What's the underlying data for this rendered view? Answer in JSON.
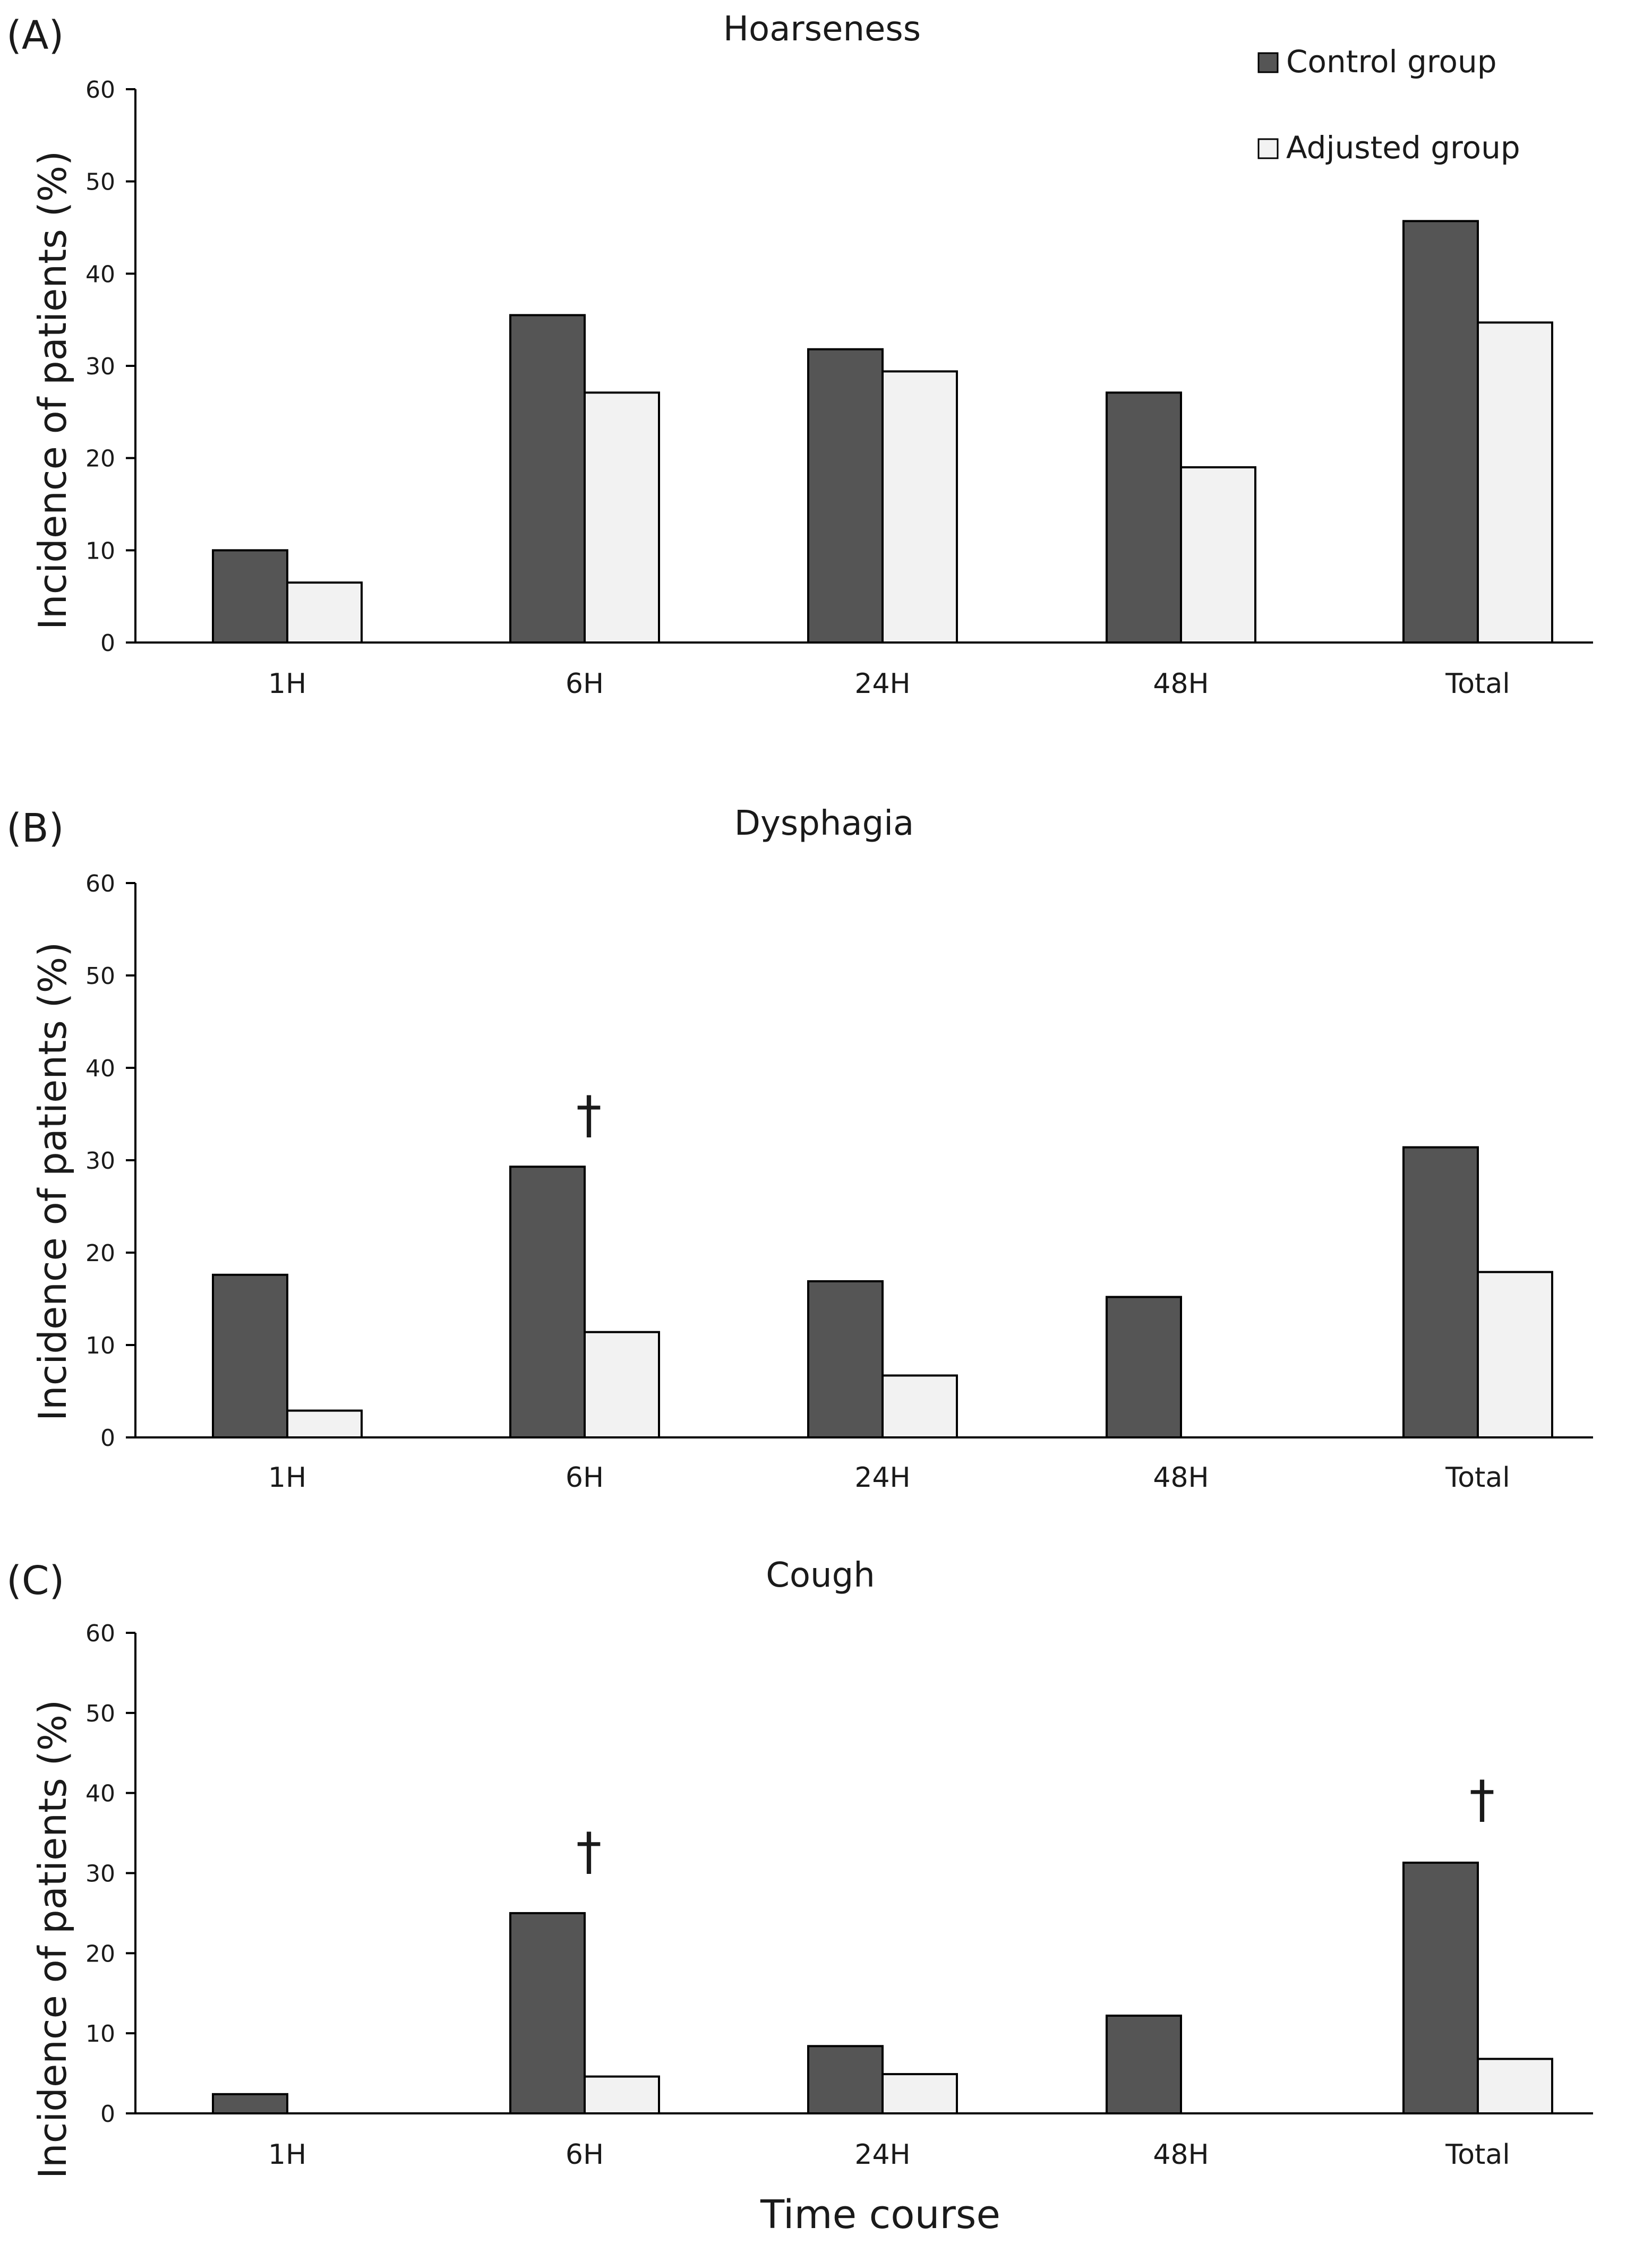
{
  "figure": {
    "xlabel": "Time course",
    "colors": {
      "control": "#555555",
      "adjusted": "#f2f2f2",
      "outline": "#000000"
    }
  },
  "chart_data": [
    {
      "type": "bar",
      "panel_label": "(A)",
      "title": "Hoarseness",
      "ylabel": "Incidence of patients (%)",
      "xlabel": "",
      "ylim": [
        0,
        60
      ],
      "yticks": [
        0,
        10,
        20,
        30,
        40,
        50,
        60
      ],
      "categories": [
        "1H",
        "6H",
        "24H",
        "48H",
        "Total"
      ],
      "series": [
        {
          "name": "Control group",
          "values": [
            10,
            35.5,
            31.8,
            27.1,
            45.7
          ]
        },
        {
          "name": "Adjusted group",
          "values": [
            6.5,
            27.1,
            29.4,
            19,
            34.7
          ]
        }
      ],
      "legend": {
        "position": "top-right",
        "entries": [
          "Control group",
          "Adjusted group"
        ]
      },
      "annotations": []
    },
    {
      "type": "bar",
      "panel_label": "(B)",
      "title": "Dysphagia",
      "ylabel": "Incidence of patients (%)",
      "xlabel": "",
      "ylim": [
        0,
        60
      ],
      "yticks": [
        0,
        10,
        20,
        30,
        40,
        50,
        60
      ],
      "categories": [
        "1H",
        "6H",
        "24H",
        "48H",
        "Total"
      ],
      "series": [
        {
          "name": "Control group",
          "values": [
            17.6,
            29.3,
            16.9,
            15.2,
            31.4
          ]
        },
        {
          "name": "Adjusted group",
          "values": [
            2.9,
            11.4,
            6.7,
            0,
            17.9
          ]
        }
      ],
      "annotations": [
        {
          "text": "†",
          "category": "6H",
          "value": 33
        }
      ]
    },
    {
      "type": "bar",
      "panel_label": "(C)",
      "title": "Cough",
      "ylabel": "Incidence of patients (%)",
      "xlabel": "",
      "ylim": [
        0,
        60
      ],
      "yticks": [
        0,
        10,
        20,
        30,
        40,
        50,
        60
      ],
      "categories": [
        "1H",
        "6H",
        "24H",
        "48H",
        "Total"
      ],
      "series": [
        {
          "name": "Control group",
          "values": [
            2.4,
            25,
            8.4,
            12.2,
            31.3
          ]
        },
        {
          "name": "Adjusted group",
          "values": [
            0,
            4.6,
            4.9,
            0,
            6.8
          ]
        }
      ],
      "annotations": [
        {
          "text": "†",
          "category": "6H",
          "value": 30.5
        },
        {
          "text": "†",
          "category": "Total",
          "value": 37
        }
      ]
    }
  ]
}
